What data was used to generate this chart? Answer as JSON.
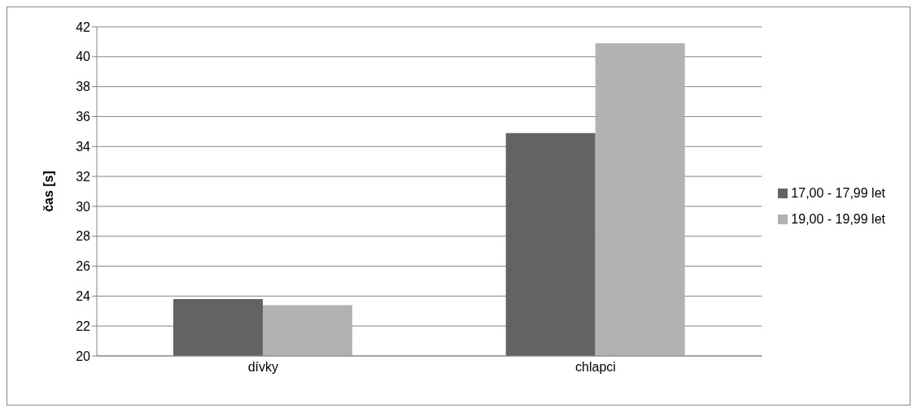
{
  "chart_data": {
    "type": "bar",
    "ylabel": "čas [s]",
    "categories": [
      "dívky",
      "chlapci"
    ],
    "series": [
      {
        "name": "17,00 - 17,99 let",
        "color": "#636363",
        "values": [
          23.8,
          34.9
        ]
      },
      {
        "name": "19,00 - 19,99 let",
        "color": "#b2b2b2",
        "values": [
          23.4,
          40.9
        ]
      }
    ],
    "ylim": [
      20,
      42
    ],
    "yticks": [
      20,
      22,
      24,
      26,
      28,
      30,
      32,
      34,
      36,
      38,
      40,
      42
    ],
    "grid": "y",
    "legend": "right"
  }
}
